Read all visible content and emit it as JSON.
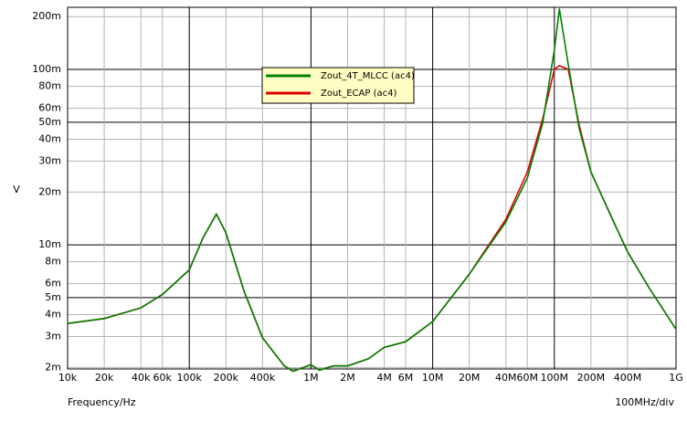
{
  "chart_data": {
    "type": "line",
    "y_label": "V",
    "x_label": "Frequency/Hz",
    "x_scale_note": "100MHz/div",
    "log_x": true,
    "log_y": true,
    "grid": true,
    "xlim": [
      10000,
      1000000000
    ],
    "ylim": [
      0.00196,
      0.226
    ],
    "xticks": [
      {
        "value": 10000,
        "label": "10k"
      },
      {
        "value": 20000,
        "label": "20k"
      },
      {
        "value": 40000,
        "label": "40k"
      },
      {
        "value": 60000,
        "label": "60k"
      },
      {
        "value": 100000,
        "label": "100k"
      },
      {
        "value": 200000,
        "label": "200k"
      },
      {
        "value": 400000,
        "label": "400k"
      },
      {
        "value": 1000000,
        "label": "1M"
      },
      {
        "value": 2000000,
        "label": "2M"
      },
      {
        "value": 4000000,
        "label": "4M"
      },
      {
        "value": 6000000,
        "label": "6M"
      },
      {
        "value": 10000000,
        "label": "10M"
      },
      {
        "value": 20000000,
        "label": "20M"
      },
      {
        "value": 40000000,
        "label": "40M"
      },
      {
        "value": 60000000,
        "label": "60M"
      },
      {
        "value": 100000000,
        "label": "100M"
      },
      {
        "value": 200000000,
        "label": "200M"
      },
      {
        "value": 400000000,
        "label": "400M"
      },
      {
        "value": 1000000000,
        "label": "1G"
      }
    ],
    "yticks": [
      {
        "value": 0.002,
        "label": "2m"
      },
      {
        "value": 0.003,
        "label": "3m"
      },
      {
        "value": 0.004,
        "label": "4m"
      },
      {
        "value": 0.005,
        "label": "5m"
      },
      {
        "value": 0.006,
        "label": "6m"
      },
      {
        "value": 0.008,
        "label": "8m"
      },
      {
        "value": 0.01,
        "label": "10m"
      },
      {
        "value": 0.02,
        "label": "20m"
      },
      {
        "value": 0.03,
        "label": "30m"
      },
      {
        "value": 0.04,
        "label": "40m"
      },
      {
        "value": 0.05,
        "label": "50m"
      },
      {
        "value": 0.06,
        "label": "60m"
      },
      {
        "value": 0.08,
        "label": "80m"
      },
      {
        "value": 0.1,
        "label": "100m"
      },
      {
        "value": 0.2,
        "label": "200m"
      }
    ],
    "x": [
      10000,
      20000,
      40000,
      60000,
      100000,
      130000,
      167000,
      200000,
      280000,
      400000,
      600000,
      710000,
      1000000,
      1170000,
      1530000,
      2000000,
      2960000,
      4000000,
      6000000,
      10000000,
      20000000,
      40000000,
      60000000,
      80000000,
      100000000,
      110000000,
      130000000,
      160000000,
      200000000,
      300000000,
      400000000,
      600000000,
      1000000000
    ],
    "series": [
      {
        "name": "Zout_ECAP (ac4)",
        "color": "#e00000",
        "values": [
          0.00356,
          0.0038,
          0.00437,
          0.0052,
          0.0072,
          0.011,
          0.015,
          0.0117,
          0.0055,
          0.00295,
          0.00205,
          0.0019,
          0.00207,
          0.00193,
          0.00204,
          0.00204,
          0.00224,
          0.0026,
          0.0028,
          0.00365,
          0.0068,
          0.014,
          0.026,
          0.052,
          0.1,
          0.105,
          0.1,
          0.048,
          0.026,
          0.014,
          0.0091,
          0.0057,
          0.0033
        ]
      },
      {
        "name": "Zout_4T_MLCC (ac4)",
        "color": "#008000",
        "values": [
          0.00356,
          0.0038,
          0.00437,
          0.0052,
          0.0072,
          0.011,
          0.015,
          0.0117,
          0.0055,
          0.00295,
          0.00205,
          0.0019,
          0.00207,
          0.00193,
          0.00204,
          0.00204,
          0.00224,
          0.0026,
          0.0028,
          0.00365,
          0.0068,
          0.0135,
          0.024,
          0.049,
          0.129,
          0.221,
          0.107,
          0.046,
          0.026,
          0.014,
          0.0091,
          0.0057,
          0.0033
        ]
      }
    ]
  }
}
